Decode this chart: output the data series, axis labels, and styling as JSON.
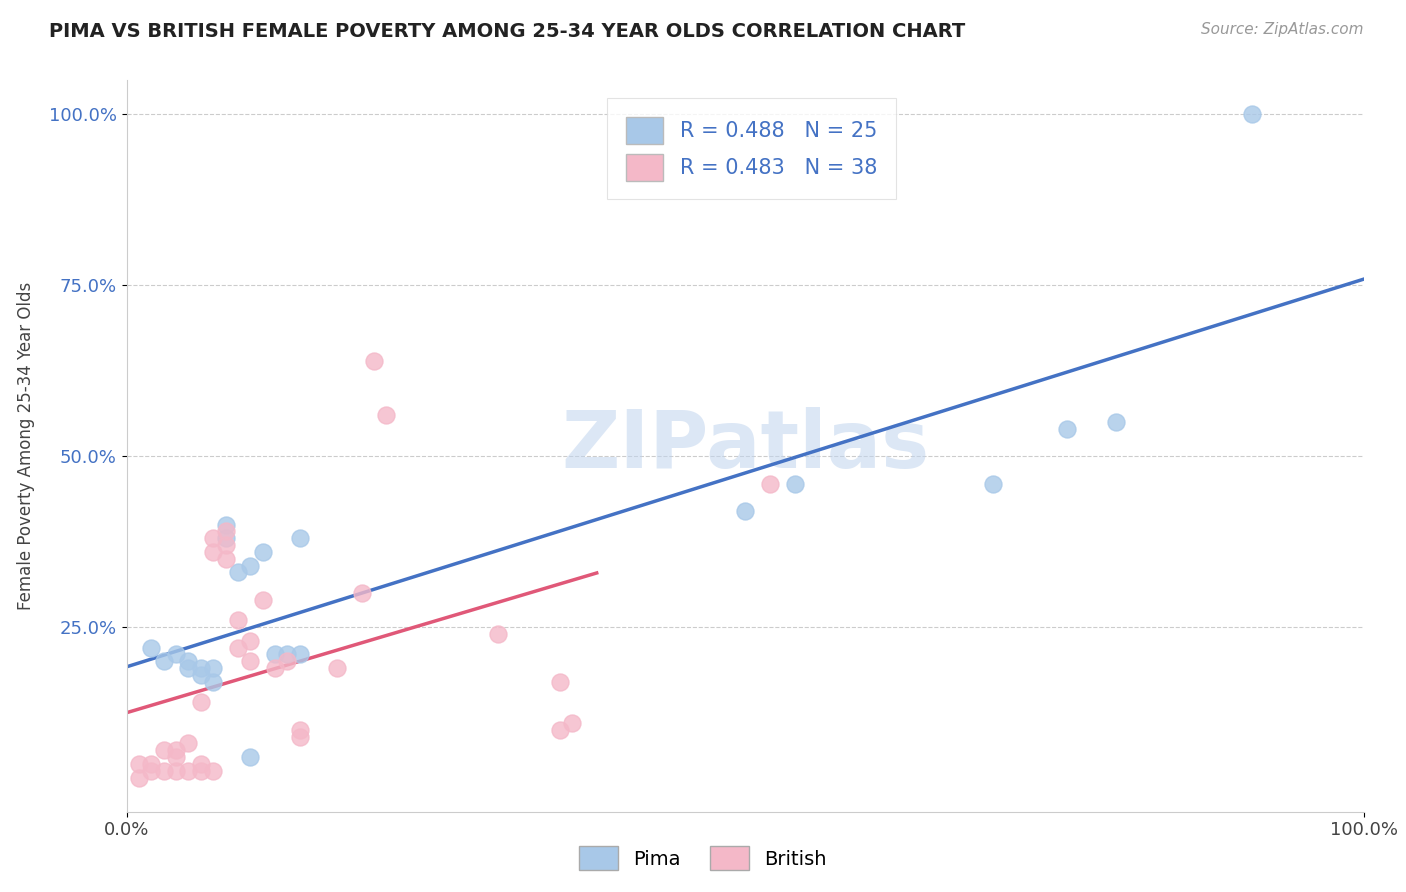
{
  "title": "PIMA VS BRITISH FEMALE POVERTY AMONG 25-34 YEAR OLDS CORRELATION CHART",
  "source": "Source: ZipAtlas.com",
  "ylabel": "Female Poverty Among 25-34 Year Olds",
  "xlim": [
    0,
    1.0
  ],
  "ylim": [
    -0.02,
    1.05
  ],
  "pima_color": "#a8c8e8",
  "british_color": "#f4b8c8",
  "pima_line_color": "#4472c4",
  "british_line_color": "#e05878",
  "pima_R": 0.488,
  "pima_N": 25,
  "british_R": 0.483,
  "british_N": 38,
  "watermark": "ZIPatlas",
  "pima_x": [
    0.02,
    0.03,
    0.04,
    0.05,
    0.05,
    0.06,
    0.06,
    0.07,
    0.07,
    0.08,
    0.08,
    0.09,
    0.1,
    0.1,
    0.11,
    0.12,
    0.13,
    0.14,
    0.5,
    0.54,
    0.7,
    0.76,
    0.8,
    0.91,
    0.14
  ],
  "pima_y": [
    0.22,
    0.2,
    0.21,
    0.2,
    0.19,
    0.18,
    0.19,
    0.17,
    0.19,
    0.38,
    0.4,
    0.33,
    0.06,
    0.34,
    0.36,
    0.21,
    0.21,
    0.38,
    0.42,
    0.46,
    0.46,
    0.54,
    0.55,
    1.0,
    0.21
  ],
  "british_x": [
    0.01,
    0.01,
    0.02,
    0.02,
    0.03,
    0.03,
    0.04,
    0.04,
    0.04,
    0.05,
    0.05,
    0.06,
    0.06,
    0.06,
    0.07,
    0.07,
    0.07,
    0.08,
    0.08,
    0.08,
    0.09,
    0.09,
    0.1,
    0.1,
    0.11,
    0.12,
    0.13,
    0.14,
    0.14,
    0.17,
    0.19,
    0.2,
    0.21,
    0.3,
    0.35,
    0.36,
    0.52,
    0.35
  ],
  "british_y": [
    0.03,
    0.05,
    0.04,
    0.05,
    0.04,
    0.07,
    0.04,
    0.06,
    0.07,
    0.04,
    0.08,
    0.04,
    0.05,
    0.14,
    0.04,
    0.36,
    0.38,
    0.35,
    0.37,
    0.39,
    0.22,
    0.26,
    0.2,
    0.23,
    0.29,
    0.19,
    0.2,
    0.09,
    0.1,
    0.19,
    0.3,
    0.64,
    0.56,
    0.24,
    0.1,
    0.11,
    0.46,
    0.17
  ]
}
